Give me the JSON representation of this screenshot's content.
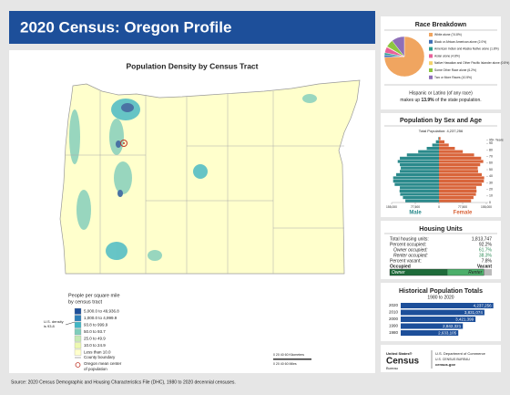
{
  "header": {
    "title": "2020 Census: Oregon Profile"
  },
  "map": {
    "title": "Population Density by Census Tract",
    "legend": {
      "title_1": "People per square mile",
      "title_2": "by census tract",
      "classes": [
        "5,000.0 to 49,936.8",
        "1,000.0 to 4,999.9",
        "93.8 to 999.9",
        "50.0 to 93.7",
        "25.0 to 49.9",
        "10.0 to 24.9",
        "Less than 10.0"
      ],
      "colors": [
        "#1d4f9a",
        "#2c7fb8",
        "#41b6c4",
        "#7fcdbb",
        "#c7e9b4",
        "#edf8b1",
        "#ffffcc"
      ],
      "us_density_1": "U.S. density",
      "us_density_2": "is 93.8",
      "county": "County boundary",
      "center_1": "Oregon mean center",
      "center_2": "of population"
    },
    "scale": {
      "km": "0   20   40   60 Kilometers",
      "mi": "0   20   40   60 Miles"
    }
  },
  "chart_data": [
    {
      "type": "pie",
      "title": "Race Breakdown",
      "categories": [
        "White alone",
        "Black or African American alone",
        "American Indian and Alaska Native alone",
        "Asian alone",
        "Native Hawaiian and Other Pacific Islander alone",
        "Some Other Race alone",
        "Two or More Races"
      ],
      "values": [
        74.8,
        2.0,
        1.8,
        4.8,
        0.5,
        6.2,
        10.5
      ],
      "value_labels": [
        "(74.8%)",
        "(2.0%)",
        "(1.8%)",
        "(4.8%)",
        "(0.5%)",
        "(6.2%)",
        "(10.5%)"
      ],
      "colors": [
        "#f0a560",
        "#3e6fb5",
        "#2a9d8f",
        "#e8609a",
        "#f3d36b",
        "#8cc63f",
        "#8e6fb8"
      ]
    },
    {
      "type": "pyramid",
      "title": "Population by Sex and Age",
      "subtitle": "Total Population: 4,237,256",
      "x": [
        0,
        5,
        10,
        15,
        20,
        25,
        30,
        35,
        40,
        45,
        50,
        55,
        60,
        65,
        70,
        75,
        80,
        85,
        90,
        95
      ],
      "series": [
        {
          "name": "Male",
          "color": "#2b8a8c",
          "values": [
            110000,
            118000,
            127000,
            129000,
            128000,
            145000,
            150000,
            150000,
            140000,
            128000,
            125000,
            128000,
            135000,
            128000,
            105000,
            68000,
            40000,
            22000,
            10000,
            2000
          ]
        },
        {
          "name": "Female",
          "color": "#d9653b",
          "values": [
            105000,
            113000,
            121000,
            123000,
            122000,
            140000,
            147000,
            148000,
            140000,
            128000,
            127000,
            135000,
            145000,
            138000,
            115000,
            78000,
            52000,
            32000,
            18000,
            5000
          ]
        }
      ],
      "ylim": [
        0,
        100
      ],
      "yticks": [
        0,
        10,
        20,
        30,
        40,
        50,
        60,
        70,
        80,
        90,
        {
          "value": 95,
          "label": "95+ Years"
        }
      ],
      "xlim": [
        0,
        155000
      ],
      "xticks": [
        0,
        {
          "value": 77500,
          "label": "77,500"
        },
        {
          "value": 155000,
          "label": "155,000"
        }
      ]
    },
    {
      "type": "hbar",
      "title": "Historical Population Totals",
      "subtitle": "1980 to 2020",
      "categories": [
        "2020",
        "2010",
        "2000",
        "1990",
        "1980"
      ],
      "values": [
        4237256,
        3831074,
        3421399,
        2842321,
        2633105
      ],
      "value_labels": [
        "4,237,256",
        "3,831,074",
        "3,421,399",
        "2,842,321",
        "2,633,105"
      ],
      "color": "#1d4f9a",
      "xlim": [
        0,
        4500000
      ]
    }
  ],
  "hispanic": {
    "line_1": "Hispanic or Latino (of any race)",
    "before": "makes up ",
    "value": "13.9%",
    "after": " of the state population."
  },
  "housing": {
    "title": "Housing Units",
    "total_label": "Total housing units:",
    "total": "1,813,747",
    "rows": [
      {
        "label": "Percent occupied:",
        "value": 92.2,
        "value_label": "92.2%"
      },
      {
        "label": "Owner occupied:",
        "value": 61.7,
        "value_label": "61.7%"
      },
      {
        "label": "Renter occupied:",
        "value": 38.3,
        "value_label": "38.3%"
      },
      {
        "label": "Percent vacant:",
        "value": 7.8,
        "value_label": "7.8%"
      }
    ],
    "occupied": "Occupied",
    "vacant": "Vacant",
    "owner": "Owner",
    "renter": "Renter"
  },
  "logo": {
    "line_1": "United States®",
    "line_2": "Census",
    "line_3": "Bureau",
    "dept": "U.S. Department of Commerce",
    "bureau": "U.S. CENSUS BUREAU",
    "site": "census.gov"
  },
  "footer": {
    "source": "Source: 2020 Census Demographic and Housing Characteristics File (DHC), 1980 to 2020 decennial censuses."
  }
}
